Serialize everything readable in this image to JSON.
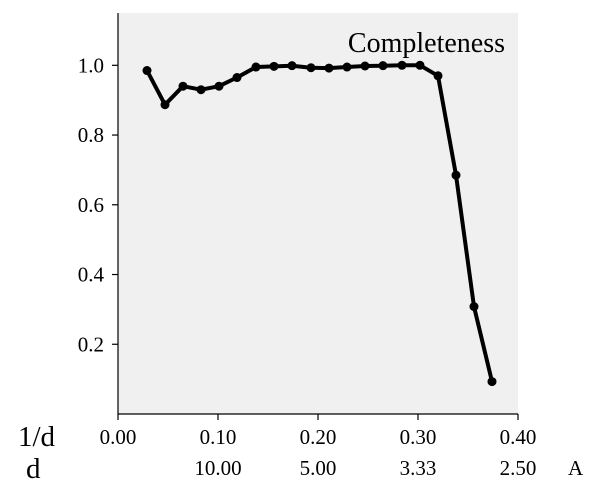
{
  "chart_data": {
    "type": "line",
    "title": "Completeness",
    "x_axis_name": "1/d",
    "x_secondary_axis_name": "d",
    "x_secondary_unit": "A",
    "xlim": [
      0.0,
      0.4
    ],
    "ylim": [
      0.0,
      1.15
    ],
    "x_ticks": [
      "0.00",
      "0.10",
      "0.20",
      "0.30",
      "0.40"
    ],
    "x_tick_values": [
      0.0,
      0.1,
      0.2,
      0.3,
      0.4
    ],
    "x_secondary_ticks": [
      "10.00",
      "5.00",
      "3.33",
      "2.50"
    ],
    "y_ticks": [
      "0.2",
      "0.4",
      "0.6",
      "0.8",
      "1.0"
    ],
    "y_tick_values": [
      0.2,
      0.4,
      0.6,
      0.8,
      1.0
    ],
    "grid": false,
    "background": "#f0f0f0",
    "line_color": "#000000",
    "x": [
      0.029,
      0.047,
      0.065,
      0.083,
      0.101,
      0.119,
      0.138,
      0.156,
      0.174,
      0.193,
      0.211,
      0.229,
      0.247,
      0.265,
      0.284,
      0.302,
      0.32,
      0.338,
      0.356,
      0.374
    ],
    "y": [
      0.985,
      0.887,
      0.94,
      0.93,
      0.94,
      0.965,
      0.995,
      0.997,
      0.999,
      0.993,
      0.992,
      0.995,
      0.998,
      0.999,
      1.0,
      1.0,
      0.97,
      0.685,
      0.308,
      0.093
    ]
  }
}
